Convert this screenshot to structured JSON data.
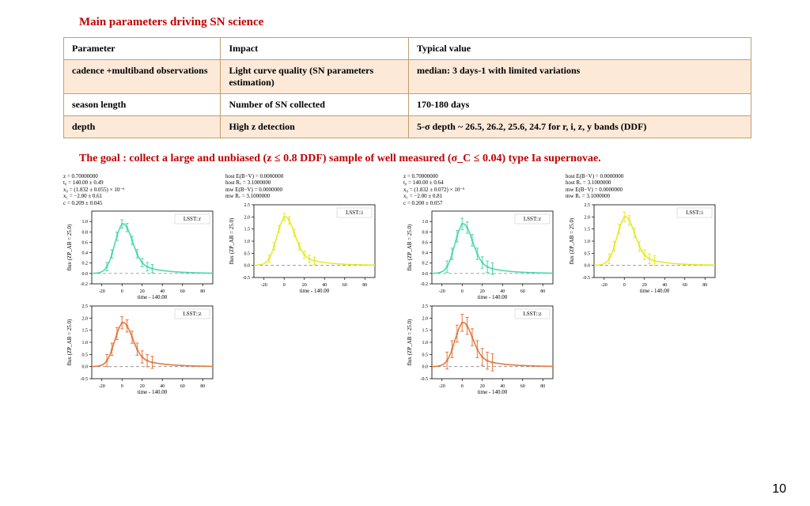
{
  "title": "Main parameters driving SN science",
  "table": {
    "headers": [
      "Parameter",
      "Impact",
      "Typical value"
    ],
    "rows": [
      {
        "shaded": true,
        "cells": [
          "cadence +multiband observations",
          "Light curve quality (SN parameters estimation)",
          "median: 3 days-1 with limited variations"
        ]
      },
      {
        "shaded": false,
        "cells": [
          "season length",
          "Number of SN collected",
          "170-180 days"
        ]
      },
      {
        "shaded": true,
        "cells": [
          "depth",
          "High z detection",
          "5-σ depth ~ 26.5, 26.2, 25.6, 24.7 for r, i, z, y bands (DDF)"
        ]
      }
    ]
  },
  "goal": "The goal : collect a large and unbiased (z ≤ 0.8 DDF) sample of well measured (σ_C ≤ 0.04) type Ia supernovae.",
  "params_left_a": "z = 0.70000000\nt₀ = 140.00 ± 0.49\nx₀ = (1.832 ± 0.055) × 10⁻⁶\nx₁ = −2.00 ± 0.61\nc = 0.209 ± 0.045",
  "params_left_b": "host E(B−V) = 0.0000000\nhost Rᵥ = 3.1000000\nmw E(B−V) = 0.0000000\nmw Rᵥ = 3.1000000",
  "params_right_a": "z = 0.70000000\nt₀ = 140.00 ± 0.64\nx₀ = (1.832 ± 0.072) × 10⁻⁶\nx₁ = −2.00 ± 0.81\nc = 0.200 ± 0.057",
  "params_right_b": "host E(B−V) = 0.0000000\nhost Rᵥ = 3.1000000\nmw E(B−V) = 0.0000000\nmw Rᵥ = 3.1000000",
  "chart": {
    "width": 195,
    "height": 120,
    "xlim": [
      -30,
      90
    ],
    "xticks": [
      -20,
      0,
      20,
      40,
      60,
      80
    ],
    "xlabel": "time - 140.00",
    "ylabel": "flux (ZP_AB = 25.0)",
    "axis_color": "#000000",
    "grid_color": "#bbbbbb",
    "zero_dash": "#888888",
    "label_fontsize": 7,
    "tick_fontsize": 6,
    "legend_fontsize": 7,
    "plots": {
      "r": {
        "label": "LSST::r",
        "color": "#4fd8b0",
        "ylim": [
          -0.2,
          1.2
        ],
        "yticks": [
          -0.2,
          0.0,
          0.2,
          0.4,
          0.6,
          0.8,
          1.0
        ],
        "peak": 1.0,
        "err": 0.08
      },
      "i": {
        "label": "LSST::i",
        "color": "#e8e830",
        "ylim": [
          -0.5,
          2.5
        ],
        "yticks": [
          -0.5,
          0.0,
          0.5,
          1.0,
          1.5,
          2.0,
          2.5
        ],
        "peak": 2.1,
        "err": 0.15
      },
      "z": {
        "label": "LSST::z",
        "color": "#e67840",
        "ylim": [
          -0.5,
          2.5
        ],
        "yticks": [
          -0.5,
          0.0,
          0.5,
          1.0,
          1.5,
          2.0,
          2.5
        ],
        "peak": 1.9,
        "err": 0.25
      },
      "r2": {
        "label": "LSST::r",
        "color": "#4fd8b0",
        "ylim": [
          -0.2,
          1.2
        ],
        "yticks": [
          -0.2,
          0.0,
          0.2,
          0.4,
          0.6,
          0.8,
          1.0
        ],
        "peak": 1.0,
        "err": 0.11
      },
      "i2": {
        "label": "LSST::i",
        "color": "#e8e830",
        "ylim": [
          -0.5,
          2.5
        ],
        "yticks": [
          -0.5,
          0.0,
          0.5,
          1.0,
          1.5,
          2.0,
          2.5
        ],
        "peak": 2.1,
        "err": 0.2
      },
      "z2": {
        "label": "LSST::z",
        "color": "#e67840",
        "ylim": [
          -0.5,
          2.5
        ],
        "yticks": [
          -0.5,
          0.0,
          0.5,
          1.0,
          1.5,
          2.0,
          2.5
        ],
        "peak": 1.9,
        "err": 0.35
      }
    },
    "curve_x": [
      -30,
      -25,
      -20,
      -15,
      -10,
      -5,
      0,
      5,
      10,
      15,
      20,
      25,
      30,
      35,
      40,
      45,
      50,
      60,
      70,
      80,
      90
    ]
  },
  "pagenum": "10"
}
